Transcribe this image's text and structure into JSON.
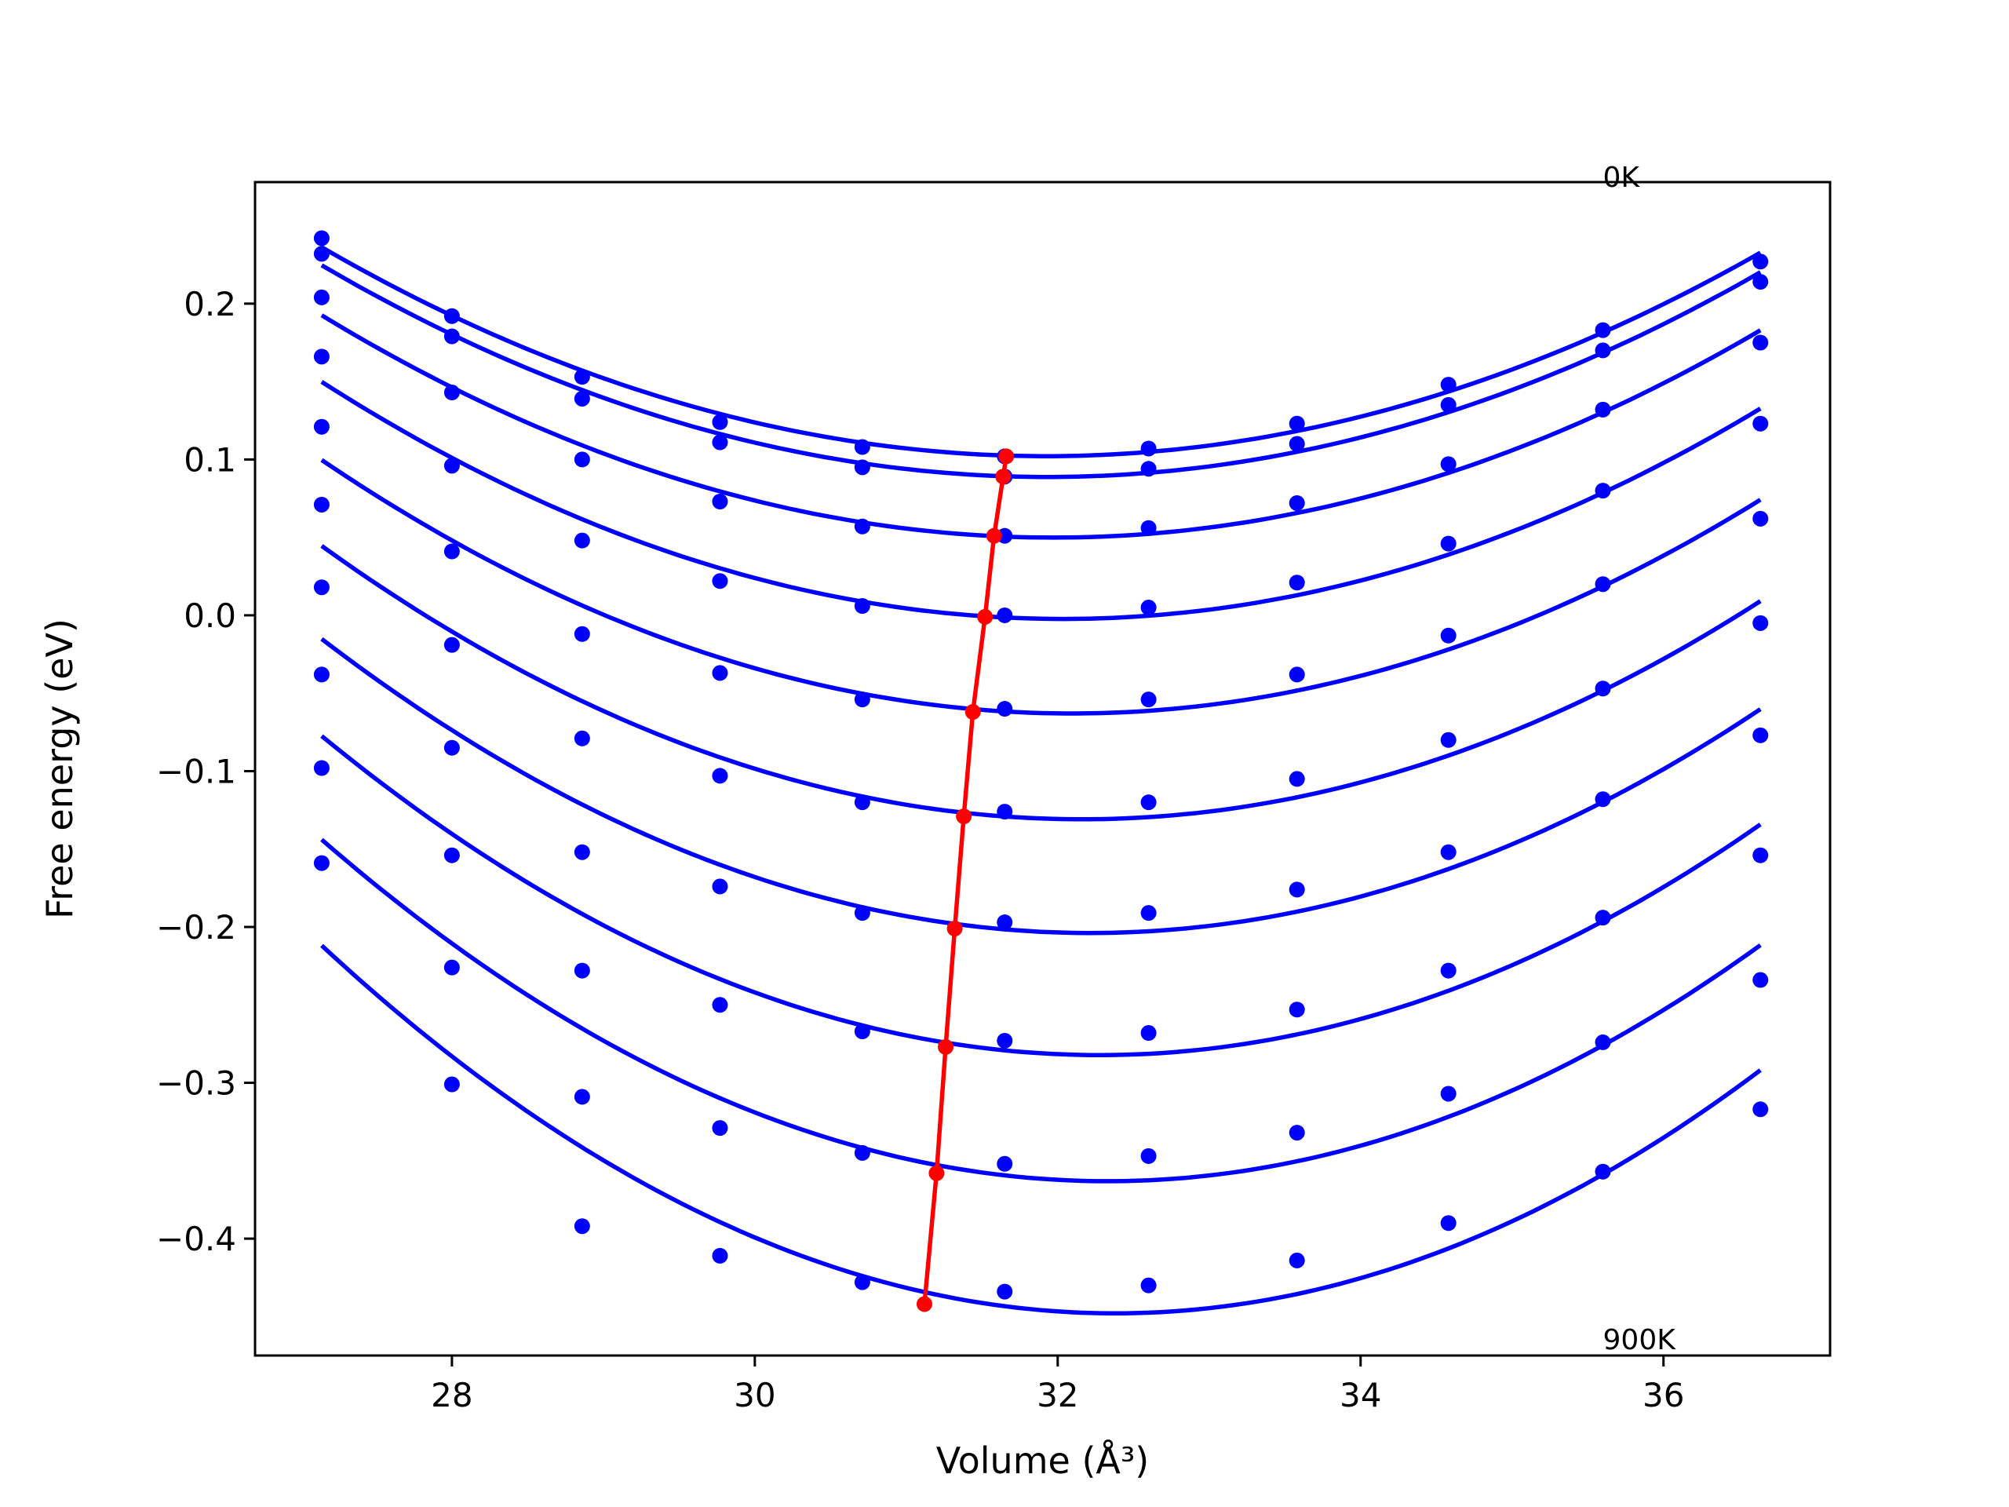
{
  "chart_data": {
    "type": "line",
    "xlabel": "Volume (Å³)",
    "ylabel": "Free energy (eV)",
    "xlim": [
      26.7,
      37.1
    ],
    "ylim": [
      -0.475,
      0.278
    ],
    "xticks": [
      28,
      30,
      32,
      34,
      36
    ],
    "xtick_labels": [
      "28",
      "30",
      "32",
      "34",
      "36"
    ],
    "yticks": [
      -0.4,
      -0.3,
      -0.2,
      -0.1,
      0.0,
      0.1,
      0.2
    ],
    "ytick_labels": [
      "−0.4",
      "−0.3",
      "−0.2",
      "−0.1",
      "0.0",
      "0.1",
      "0.2"
    ],
    "grid": false,
    "annotations": [
      {
        "text": "0K",
        "x": 35.6,
        "y": 0.28
      },
      {
        "text": "900K",
        "x": 35.6,
        "y": -0.465
      }
    ],
    "colors": {
      "data": "#0000ff",
      "fit": "#0000ff",
      "minimum": "#ff0000"
    },
    "volumes": [
      27.14,
      28.0,
      28.86,
      29.77,
      30.71,
      31.65,
      32.6,
      33.58,
      34.58,
      35.6,
      36.64
    ],
    "series": [
      {
        "values": [
          0.242,
          0.192,
          0.153,
          0.124,
          0.108,
          0.102,
          0.107,
          0.123,
          0.148,
          0.183,
          0.227
        ]
      },
      {
        "values": [
          0.232,
          0.179,
          0.139,
          0.111,
          0.095,
          0.089,
          0.094,
          0.11,
          0.135,
          0.17,
          0.214
        ]
      },
      {
        "values": [
          0.204,
          0.143,
          0.1,
          0.073,
          0.057,
          0.051,
          0.056,
          0.072,
          0.097,
          0.132,
          0.175
        ]
      },
      {
        "values": [
          0.166,
          0.096,
          0.048,
          0.022,
          0.006,
          0.0,
          0.005,
          0.021,
          0.046,
          0.08,
          0.123
        ]
      },
      {
        "values": [
          0.121,
          0.041,
          -0.012,
          -0.037,
          -0.054,
          -0.06,
          -0.054,
          -0.038,
          -0.013,
          0.02,
          0.062
        ]
      },
      {
        "values": [
          0.071,
          -0.019,
          -0.079,
          -0.103,
          -0.12,
          -0.126,
          -0.12,
          -0.105,
          -0.08,
          -0.047,
          -0.005
        ]
      },
      {
        "values": [
          0.018,
          -0.085,
          -0.152,
          -0.174,
          -0.191,
          -0.197,
          -0.191,
          -0.176,
          -0.152,
          -0.118,
          -0.077
        ]
      },
      {
        "values": [
          -0.038,
          -0.154,
          -0.228,
          -0.25,
          -0.267,
          -0.273,
          -0.268,
          -0.253,
          -0.228,
          -0.194,
          -0.154
        ]
      },
      {
        "values": [
          -0.098,
          -0.226,
          -0.309,
          -0.329,
          -0.345,
          -0.352,
          -0.347,
          -0.332,
          -0.307,
          -0.274,
          -0.234
        ]
      },
      {
        "values": [
          -0.159,
          -0.301,
          -0.392,
          -0.411,
          -0.428,
          -0.434,
          -0.43,
          -0.414,
          -0.39,
          -0.357,
          -0.317
        ]
      }
    ],
    "minimum_line": {
      "x": [
        31.66,
        31.64,
        31.58,
        31.52,
        31.44,
        31.38,
        31.32,
        31.26,
        31.2,
        31.12
      ],
      "y": [
        0.102,
        0.089,
        0.051,
        -0.001,
        -0.062,
        -0.129,
        -0.201,
        -0.277,
        -0.358,
        -0.442
      ]
    }
  }
}
